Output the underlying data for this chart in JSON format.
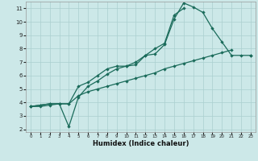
{
  "title": "",
  "xlabel": "Humidex (Indice chaleur)",
  "bg_color": "#cce8e8",
  "grid_color": "#aacfcf",
  "line_color": "#1a6b5a",
  "xlim": [
    -0.5,
    23.5
  ],
  "ylim": [
    1.8,
    11.5
  ],
  "yticks": [
    2,
    3,
    4,
    5,
    6,
    7,
    8,
    9,
    10,
    11
  ],
  "xticks": [
    0,
    1,
    2,
    3,
    4,
    5,
    6,
    7,
    8,
    9,
    10,
    11,
    12,
    13,
    14,
    15,
    16,
    17,
    18,
    19,
    20,
    21,
    22,
    23
  ],
  "line1_x": [
    0,
    1,
    2,
    3,
    4,
    5,
    6,
    7,
    8,
    9,
    10,
    11,
    12,
    13,
    14,
    15,
    16,
    17,
    18,
    19,
    20,
    21,
    22,
    23
  ],
  "line1_y": [
    3.7,
    3.8,
    3.9,
    3.9,
    3.9,
    5.2,
    5.5,
    6.0,
    6.5,
    6.7,
    6.7,
    6.8,
    7.5,
    7.6,
    8.3,
    10.2,
    11.4,
    11.1,
    10.7,
    9.5,
    8.5,
    7.5,
    7.5,
    7.5
  ],
  "line2_x": [
    0,
    1,
    2,
    3,
    4,
    5,
    6,
    7,
    8,
    9,
    10,
    11,
    12,
    13,
    14,
    15,
    16,
    17,
    18,
    19,
    20,
    21,
    22,
    23
  ],
  "line2_y": [
    3.7,
    3.8,
    3.9,
    3.9,
    2.2,
    4.4,
    5.2,
    5.6,
    6.1,
    6.5,
    6.7,
    7.0,
    7.5,
    8.0,
    8.4,
    10.5,
    11.0,
    null,
    null,
    null,
    null,
    null,
    null,
    null
  ],
  "line3_x": [
    0,
    1,
    2,
    3,
    4,
    5,
    6,
    7,
    8,
    9,
    10,
    11,
    12,
    13,
    14,
    15,
    16,
    17,
    18,
    19,
    20,
    21,
    22,
    23
  ],
  "line3_y": [
    3.7,
    3.7,
    3.8,
    3.9,
    3.9,
    4.5,
    4.8,
    5.0,
    5.2,
    5.4,
    5.6,
    5.8,
    6.0,
    6.2,
    6.5,
    6.7,
    6.9,
    7.1,
    7.3,
    7.5,
    7.7,
    7.9,
    null,
    7.5
  ]
}
